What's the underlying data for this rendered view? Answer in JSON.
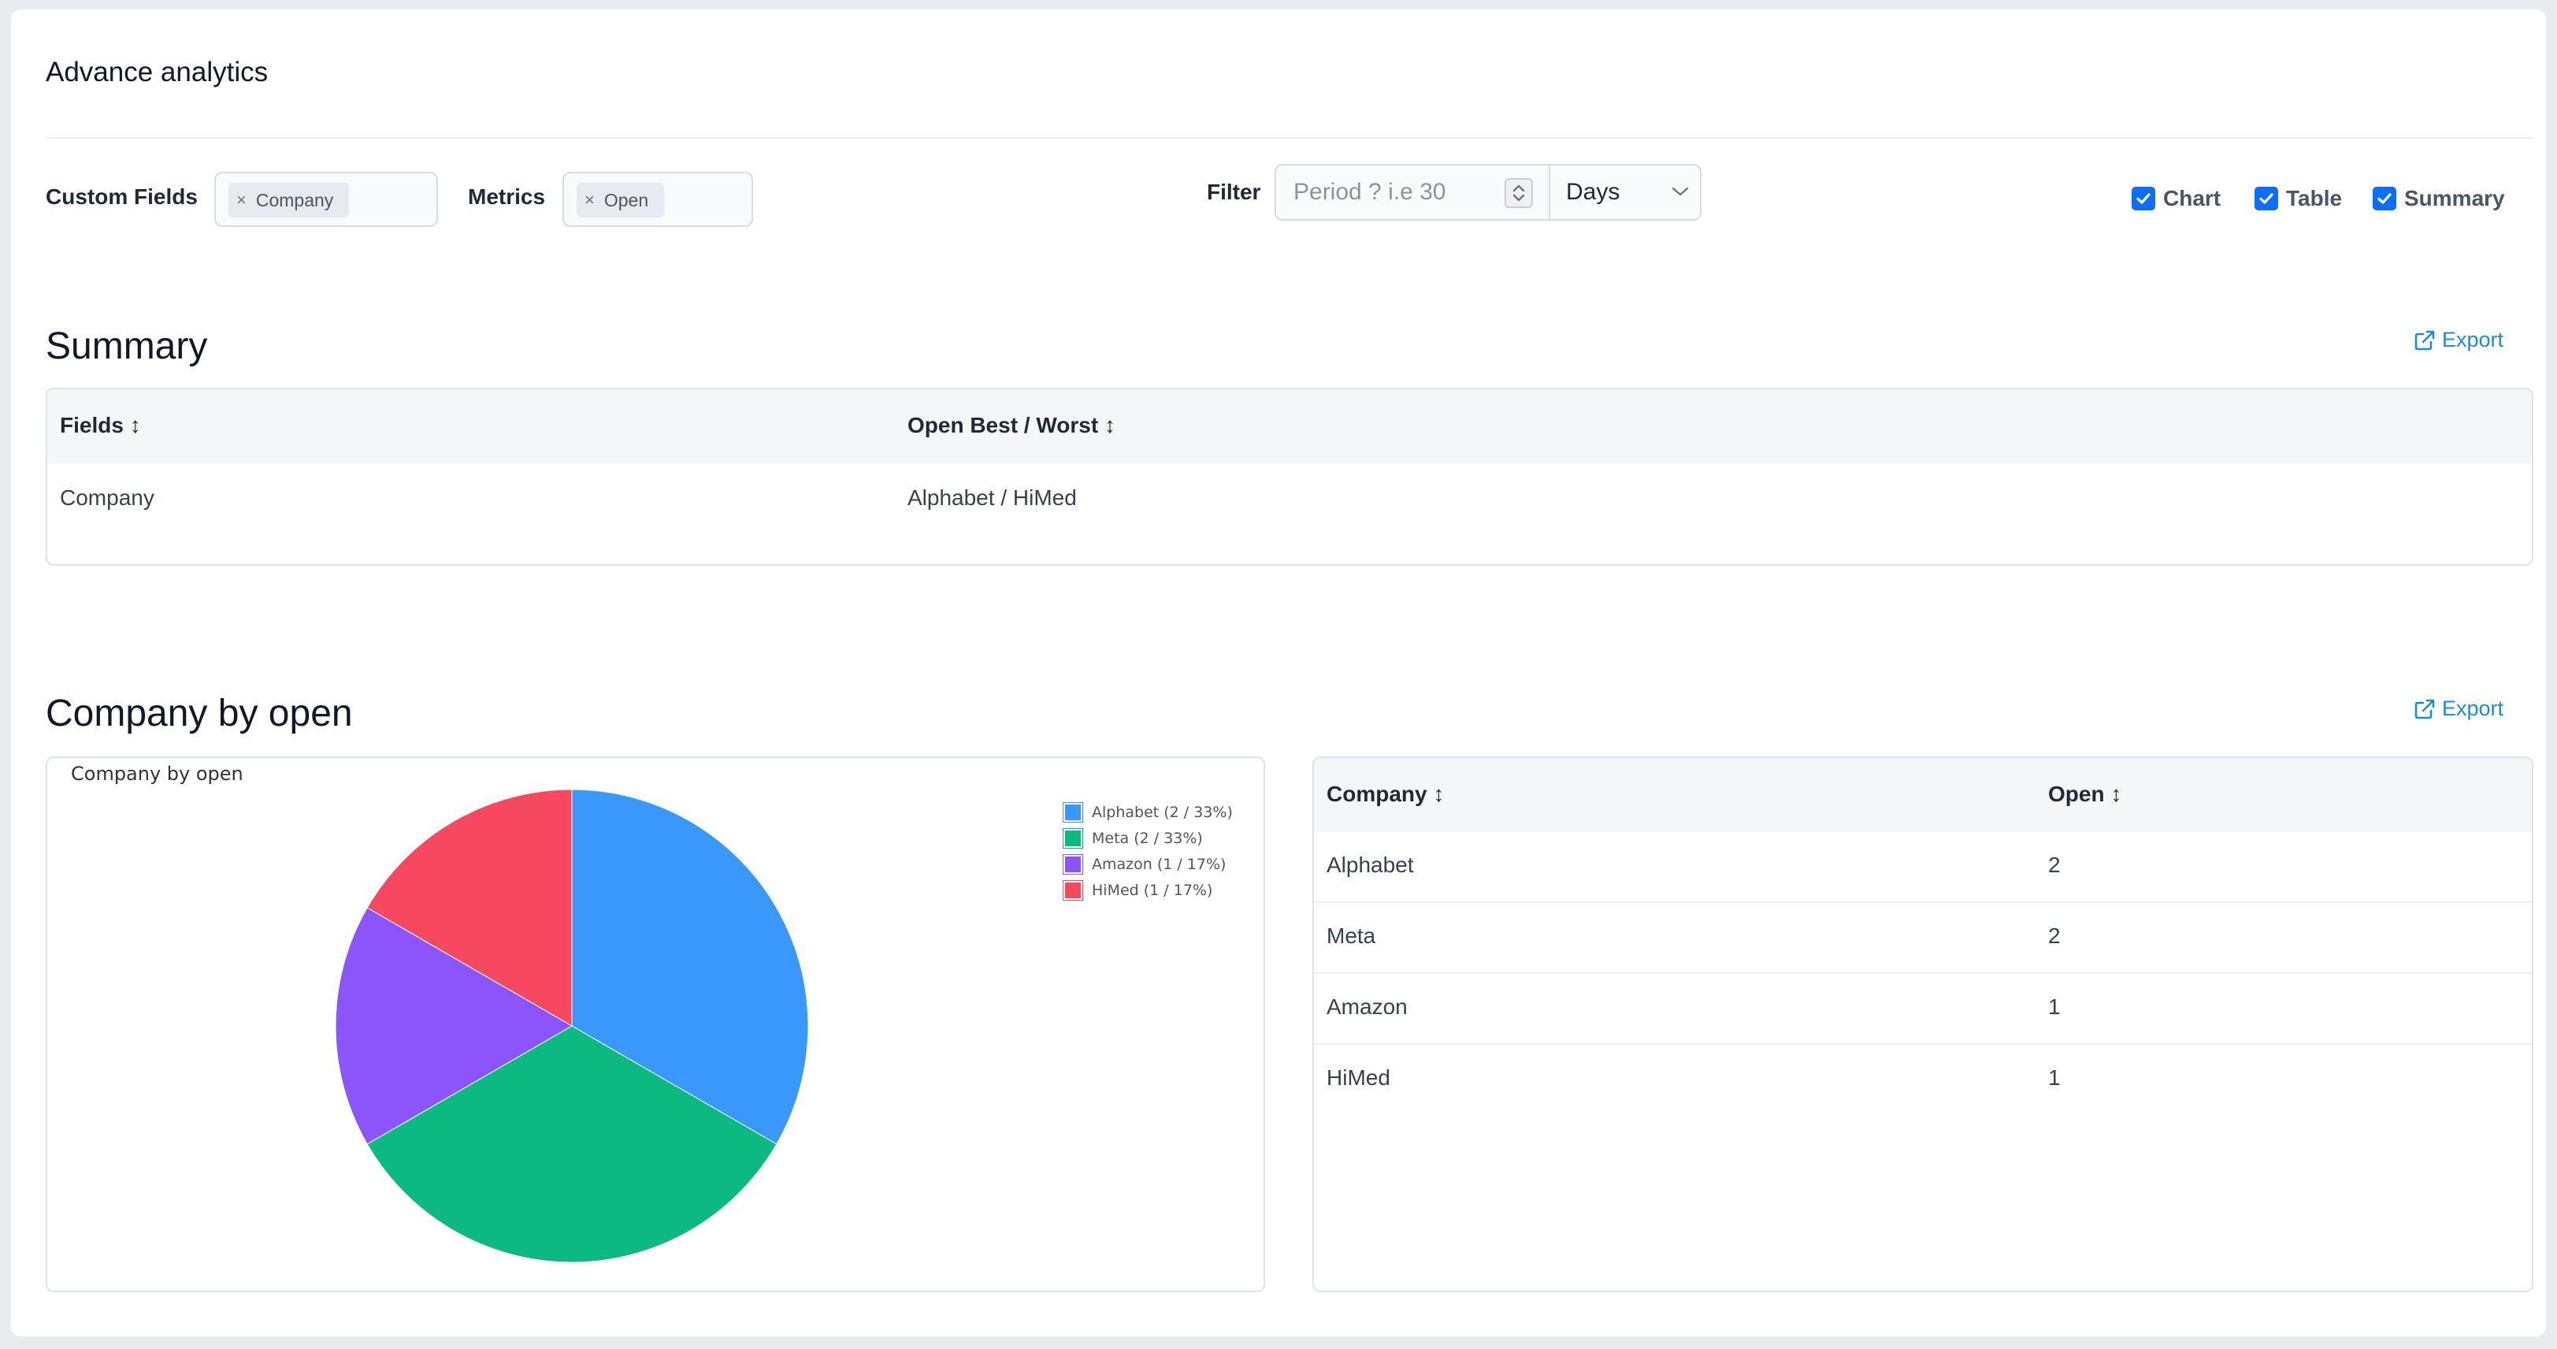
{
  "page": {
    "title": "Advance analytics"
  },
  "toolbar": {
    "custom_fields_label": "Custom Fields",
    "custom_fields_tag": "Company",
    "metrics_label": "Metrics",
    "metrics_tag": "Open",
    "filter_label": "Filter",
    "period_placeholder": "Period ? i.e 30",
    "period_value": "",
    "unit_selected": "Days",
    "checkboxes": [
      {
        "label": "Chart",
        "checked": true
      },
      {
        "label": "Table",
        "checked": true
      },
      {
        "label": "Summary",
        "checked": true
      }
    ],
    "tag_remove_glyph": "×"
  },
  "summary": {
    "title": "Summary",
    "export_label": "Export",
    "columns": [
      "Fields ↕",
      "Open Best / Worst ↕"
    ],
    "rows": [
      [
        "Company",
        "Alphabet / HiMed"
      ]
    ]
  },
  "breakdown": {
    "title": "Company by open",
    "export_label": "Export",
    "table_columns": [
      "Company ↕",
      "Open ↕"
    ],
    "table_rows": [
      [
        "Alphabet",
        "2"
      ],
      [
        "Meta",
        "2"
      ],
      [
        "Amazon",
        "1"
      ],
      [
        "HiMed",
        "1"
      ]
    ]
  },
  "chart_data": {
    "type": "pie",
    "title": "Company by open",
    "categories": [
      "Alphabet",
      "Meta",
      "Amazon",
      "HiMed"
    ],
    "values": [
      2,
      2,
      1,
      1
    ],
    "legend_labels": [
      "Alphabet (2 / 33%)",
      "Meta (2 / 33%)",
      "Amazon (1 / 17%)",
      "HiMed (1 / 17%)"
    ],
    "colors": [
      "#3a97fc",
      "#0cb981",
      "#8b55fb",
      "#f6485f"
    ],
    "legend_position": "top-right"
  },
  "icons": {
    "export": "external-link-icon",
    "check": "check-icon",
    "spinner": "spinner-arrows-icon",
    "dropdown": "chevron-down-icon"
  }
}
